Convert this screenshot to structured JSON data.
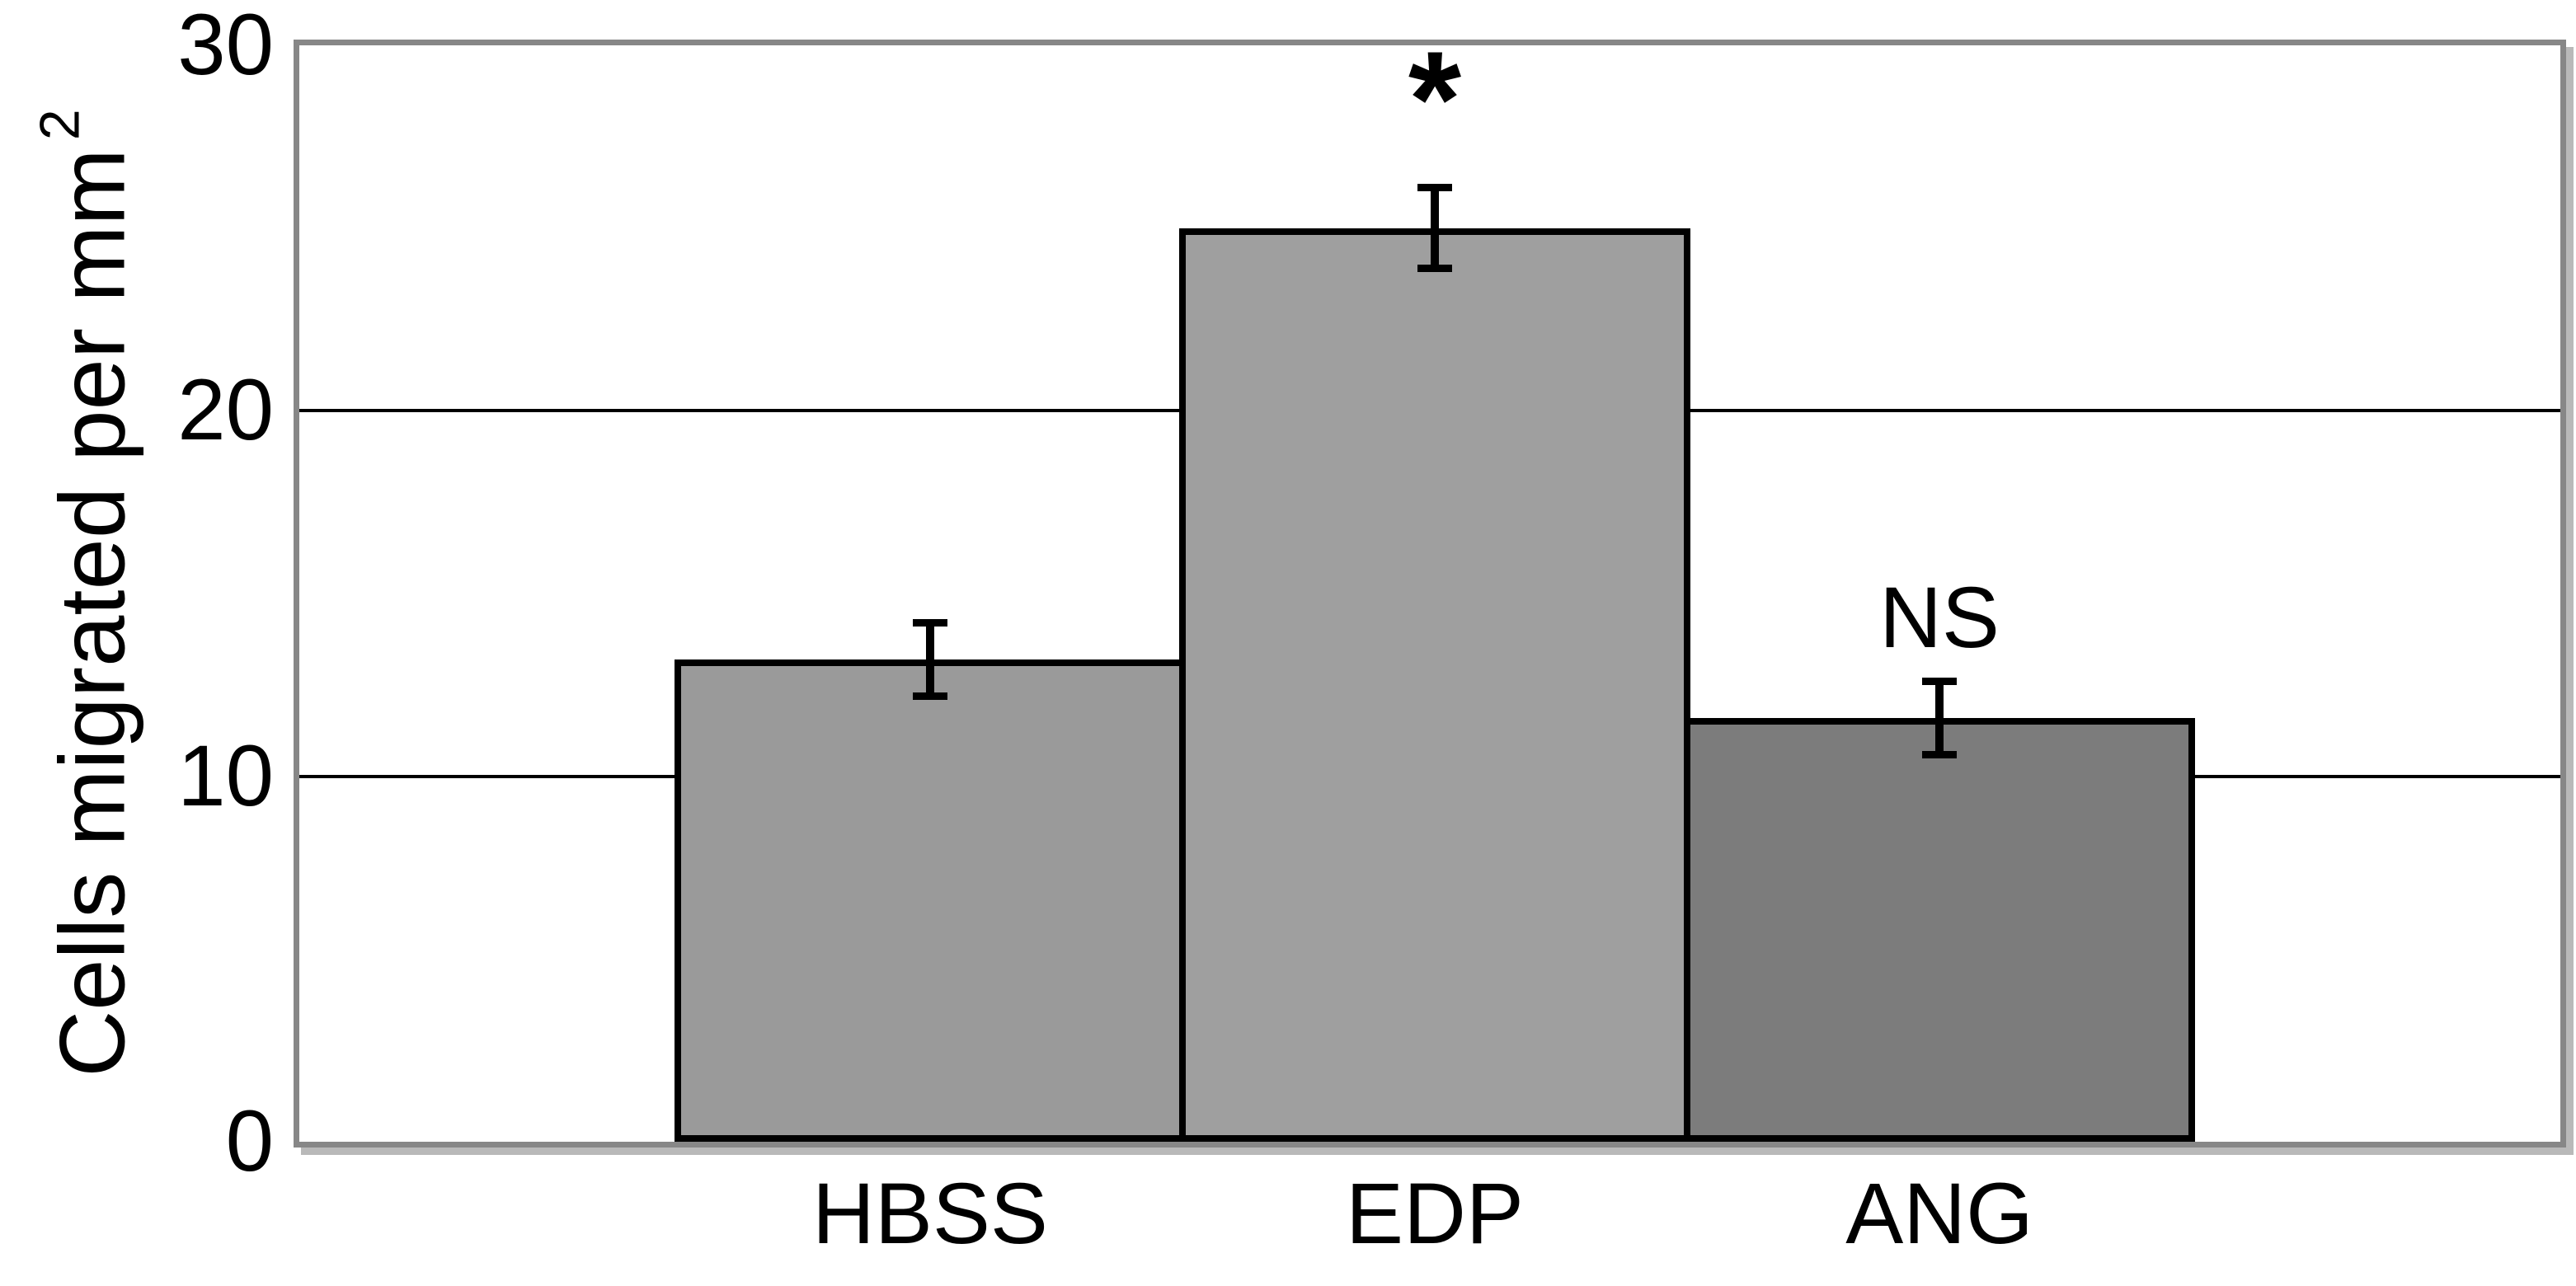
{
  "chart_data": {
    "type": "bar",
    "categories": [
      "HBSS",
      "EDP",
      "ANG"
    ],
    "values": [
      13.2,
      25.0,
      11.6
    ],
    "errors": [
      1.1,
      1.2,
      1.1
    ],
    "annotations": [
      "",
      "*",
      "NS"
    ],
    "title": "",
    "xlabel": "",
    "ylabel": "Cells migrated per mm",
    "ylabel_superscript": "2",
    "yticks": [
      0,
      10,
      20,
      30
    ],
    "ylim": [
      0,
      30
    ],
    "grid": "horizontal gridlines at 10 and 20",
    "legend_position": "none",
    "bar_colors": [
      "#9a9a9a",
      "#9f9f9f",
      "#7c7c7c"
    ],
    "colors": {
      "bar_border": "#000000",
      "frame": "#878787",
      "gridline": "#000000",
      "error_bar": "#000000",
      "text": "#000000",
      "background": "#ffffff"
    }
  }
}
